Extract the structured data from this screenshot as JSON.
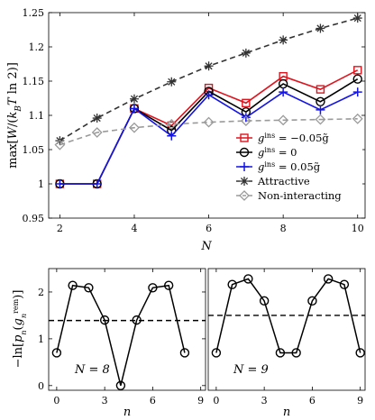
{
  "chart_data": [
    {
      "type": "line",
      "ylabel": "max[W/(k_B T ln 2)]",
      "xlabel": "N",
      "xlim": [
        1.7,
        10.2
      ],
      "ylim": [
        0.95,
        1.25
      ],
      "xticks": [
        2,
        4,
        6,
        8,
        10
      ],
      "xtick_labels": [
        "2",
        "4",
        "6",
        "8",
        "10"
      ],
      "yticks": [
        0.95,
        1.0,
        1.05,
        1.1,
        1.15,
        1.2,
        1.25
      ],
      "ytick_labels": [
        "0.95",
        "1",
        "1.05",
        "1.1",
        "1.15",
        "1.2",
        "1.25"
      ],
      "grid": false,
      "legend_position": "bottom-right",
      "series": [
        {
          "name": "g^ins = -0.05g̃",
          "legend_text": "g",
          "legend_sup": "ins",
          "legend_rest": " = −0.05g̃",
          "color": "#e0141e",
          "marker": "square",
          "line": "solid",
          "x": [
            2,
            3,
            4,
            5,
            6,
            7,
            8,
            9,
            10
          ],
          "y": [
            1.0,
            1.0,
            1.11,
            1.085,
            1.14,
            1.118,
            1.157,
            1.138,
            1.166
          ]
        },
        {
          "name": "g^ins = 0",
          "legend_text": "g",
          "legend_sup": "ins",
          "legend_rest": " = 0",
          "color": "#000000",
          "marker": "circle",
          "line": "solid",
          "x": [
            2,
            3,
            4,
            5,
            6,
            7,
            8,
            9,
            10
          ],
          "y": [
            1.0,
            1.0,
            1.11,
            1.078,
            1.135,
            1.105,
            1.146,
            1.12,
            1.153
          ]
        },
        {
          "name": "g^ins = 0.05g̃",
          "legend_text": "g",
          "legend_sup": "ins",
          "legend_rest": " = 0.05g̃",
          "color": "#1414e6",
          "marker": "plus",
          "line": "solid",
          "x": [
            2,
            3,
            4,
            5,
            6,
            7,
            8,
            9,
            10
          ],
          "y": [
            1.0,
            1.0,
            1.11,
            1.07,
            1.13,
            1.097,
            1.134,
            1.108,
            1.134
          ]
        },
        {
          "name": "Attractive",
          "legend_text": "Attractive",
          "color": "#333333",
          "marker": "asterisk",
          "line": "dashed",
          "x": [
            2,
            3,
            4,
            5,
            6,
            7,
            8,
            9,
            10
          ],
          "y": [
            1.063,
            1.096,
            1.124,
            1.149,
            1.172,
            1.191,
            1.21,
            1.227,
            1.242
          ]
        },
        {
          "name": "Non-interacting",
          "legend_text": "Non-interacting",
          "color": "#9a9a9a",
          "marker": "diamond",
          "line": "dashed",
          "x": [
            2,
            3,
            4,
            5,
            6,
            7,
            8,
            9,
            10
          ],
          "y": [
            1.057,
            1.075,
            1.082,
            1.087,
            1.09,
            1.092,
            1.093,
            1.094,
            1.095
          ]
        }
      ]
    },
    {
      "type": "line",
      "ylabel": "−ln[p_n(g_n^rem)]",
      "xlabel": "n",
      "panel_label": "N = 8",
      "xlim": [
        -0.5,
        9.3
      ],
      "ylim": [
        -0.1,
        2.5
      ],
      "xticks": [
        0,
        3,
        6,
        9
      ],
      "xtick_labels": [
        "0",
        "3",
        "6",
        "9"
      ],
      "yticks": [
        0,
        1,
        2
      ],
      "ytick_labels": [
        "0",
        "1",
        "2"
      ],
      "hline": 1.39,
      "series": [
        {
          "color": "#000000",
          "marker": "circle",
          "x": [
            0,
            1,
            2,
            3,
            4,
            5,
            6,
            7,
            8
          ],
          "y": [
            0.7,
            2.14,
            2.09,
            1.4,
            0.0,
            1.4,
            2.09,
            2.14,
            0.7
          ]
        }
      ]
    },
    {
      "type": "line",
      "xlabel": "n",
      "panel_label": "N = 9",
      "xlim": [
        -0.5,
        9.3
      ],
      "ylim": [
        -0.1,
        2.5
      ],
      "xticks": [
        0,
        3,
        6,
        9
      ],
      "xtick_labels": [
        "0",
        "3",
        "6",
        "9"
      ],
      "hline": 1.5,
      "series": [
        {
          "color": "#000000",
          "marker": "circle",
          "x": [
            0,
            1,
            2,
            3,
            4,
            5,
            6,
            7,
            8,
            9
          ],
          "y": [
            0.7,
            2.16,
            2.28,
            1.81,
            0.7,
            0.7,
            1.81,
            2.28,
            2.16,
            0.7
          ]
        }
      ]
    }
  ]
}
